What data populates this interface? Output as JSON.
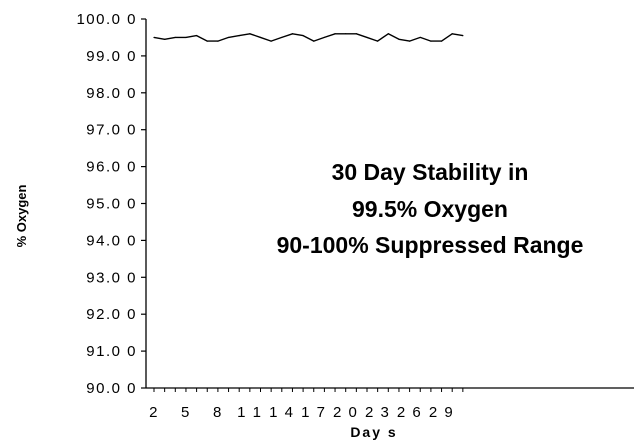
{
  "chart_data": {
    "type": "line",
    "title": "",
    "xlabel": "Day s",
    "ylabel": "% Oxygen",
    "ylim": [
      90,
      100
    ],
    "yticks": [
      "90.0 0",
      "91.0 0",
      "92.0 0",
      "93.0 0",
      "94.0 0",
      "95.0 0",
      "96.0 0",
      "97.0 0",
      "98.0 0",
      "99.0 0",
      "100.0 0"
    ],
    "xticks": [
      {
        "day": 2,
        "label": "2"
      },
      {
        "day": 5,
        "label": "5"
      },
      {
        "day": 8,
        "label": "8"
      },
      {
        "day": 11,
        "label": "1 1"
      },
      {
        "day": 14,
        "label": "1 4"
      },
      {
        "day": 17,
        "label": "1 7"
      },
      {
        "day": 20,
        "label": "2 0"
      },
      {
        "day": 23,
        "label": "2 3"
      },
      {
        "day": 26,
        "label": "2 6"
      },
      {
        "day": 29,
        "label": "2 9"
      }
    ],
    "x": [
      2,
      3,
      4,
      5,
      6,
      7,
      8,
      9,
      10,
      11,
      12,
      13,
      14,
      15,
      16,
      17,
      18,
      19,
      20,
      21,
      22,
      23,
      24,
      25,
      26,
      27,
      28,
      29,
      30,
      31
    ],
    "series": [
      {
        "values": [
          99.5,
          99.45,
          99.5,
          99.5,
          99.55,
          99.4,
          99.4,
          99.5,
          99.55,
          99.6,
          99.5,
          99.4,
          99.5,
          99.6,
          99.55,
          99.4,
          99.5,
          99.6,
          99.6,
          99.6,
          99.5,
          99.4,
          99.6,
          99.45,
          99.4,
          99.5,
          99.4,
          99.4,
          99.6,
          99.55
        ]
      }
    ],
    "annotation": [
      "30 Day Stability in",
      "99.5% Oxygen",
      "90-100% Suppressed Range"
    ],
    "grid": false,
    "legend": "none"
  },
  "colors": {
    "line": "#000000",
    "axis": "#000000",
    "background": "#ffffff"
  }
}
